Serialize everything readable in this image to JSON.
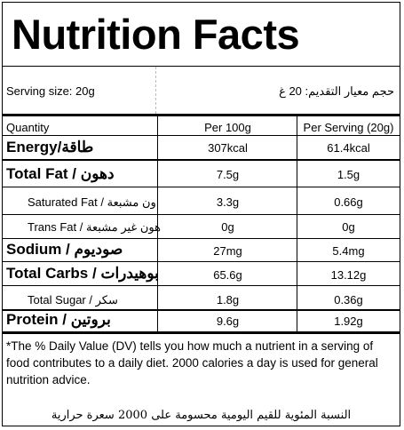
{
  "title": "Nutrition Facts",
  "serving": {
    "en": "Serving size: 20g",
    "ar": "حجم معيار التقديم: 20 غ"
  },
  "header": {
    "quantity": "Quantity",
    "per100": "Per 100g",
    "perServing": "Per Serving (20g)"
  },
  "rows": [
    {
      "name": "Energy/طاقة",
      "per100": "307kcal",
      "perServing": "61.4kcal"
    },
    {
      "name": "Total Fat / دهون",
      "per100": "7.5g",
      "perServing": "1.5g"
    },
    {
      "name": "Saturated Fat / ون مشبعة",
      "per100": "3.3g",
      "perServing": "0.66g"
    },
    {
      "name": "Trans Fat / هون غير مشبعة",
      "per100": "0g",
      "perServing": "0g"
    },
    {
      "name": "Sodium / صوديوم",
      "per100": "27mg",
      "perServing": "5.4mg"
    },
    {
      "name": "Total Carbs / بوهيدرات",
      "per100": "65.6g",
      "perServing": "13.12g"
    },
    {
      "name": "Total Sugar / سكر",
      "per100": "1.8g",
      "perServing": "0.36g"
    },
    {
      "name": "Protein / بروتين",
      "per100": "9.6g",
      "perServing": "1.92g"
    }
  ],
  "footer": {
    "note": "*The % Daily Value (DV) tells you how much a nutrient in a serving of food contributes to a daily diet. 2000 calories a day is used for general nutrition advice.",
    "ar": "النسبة المئوية للقيم اليومية محسومة على 2000 سعرة حرارية"
  }
}
